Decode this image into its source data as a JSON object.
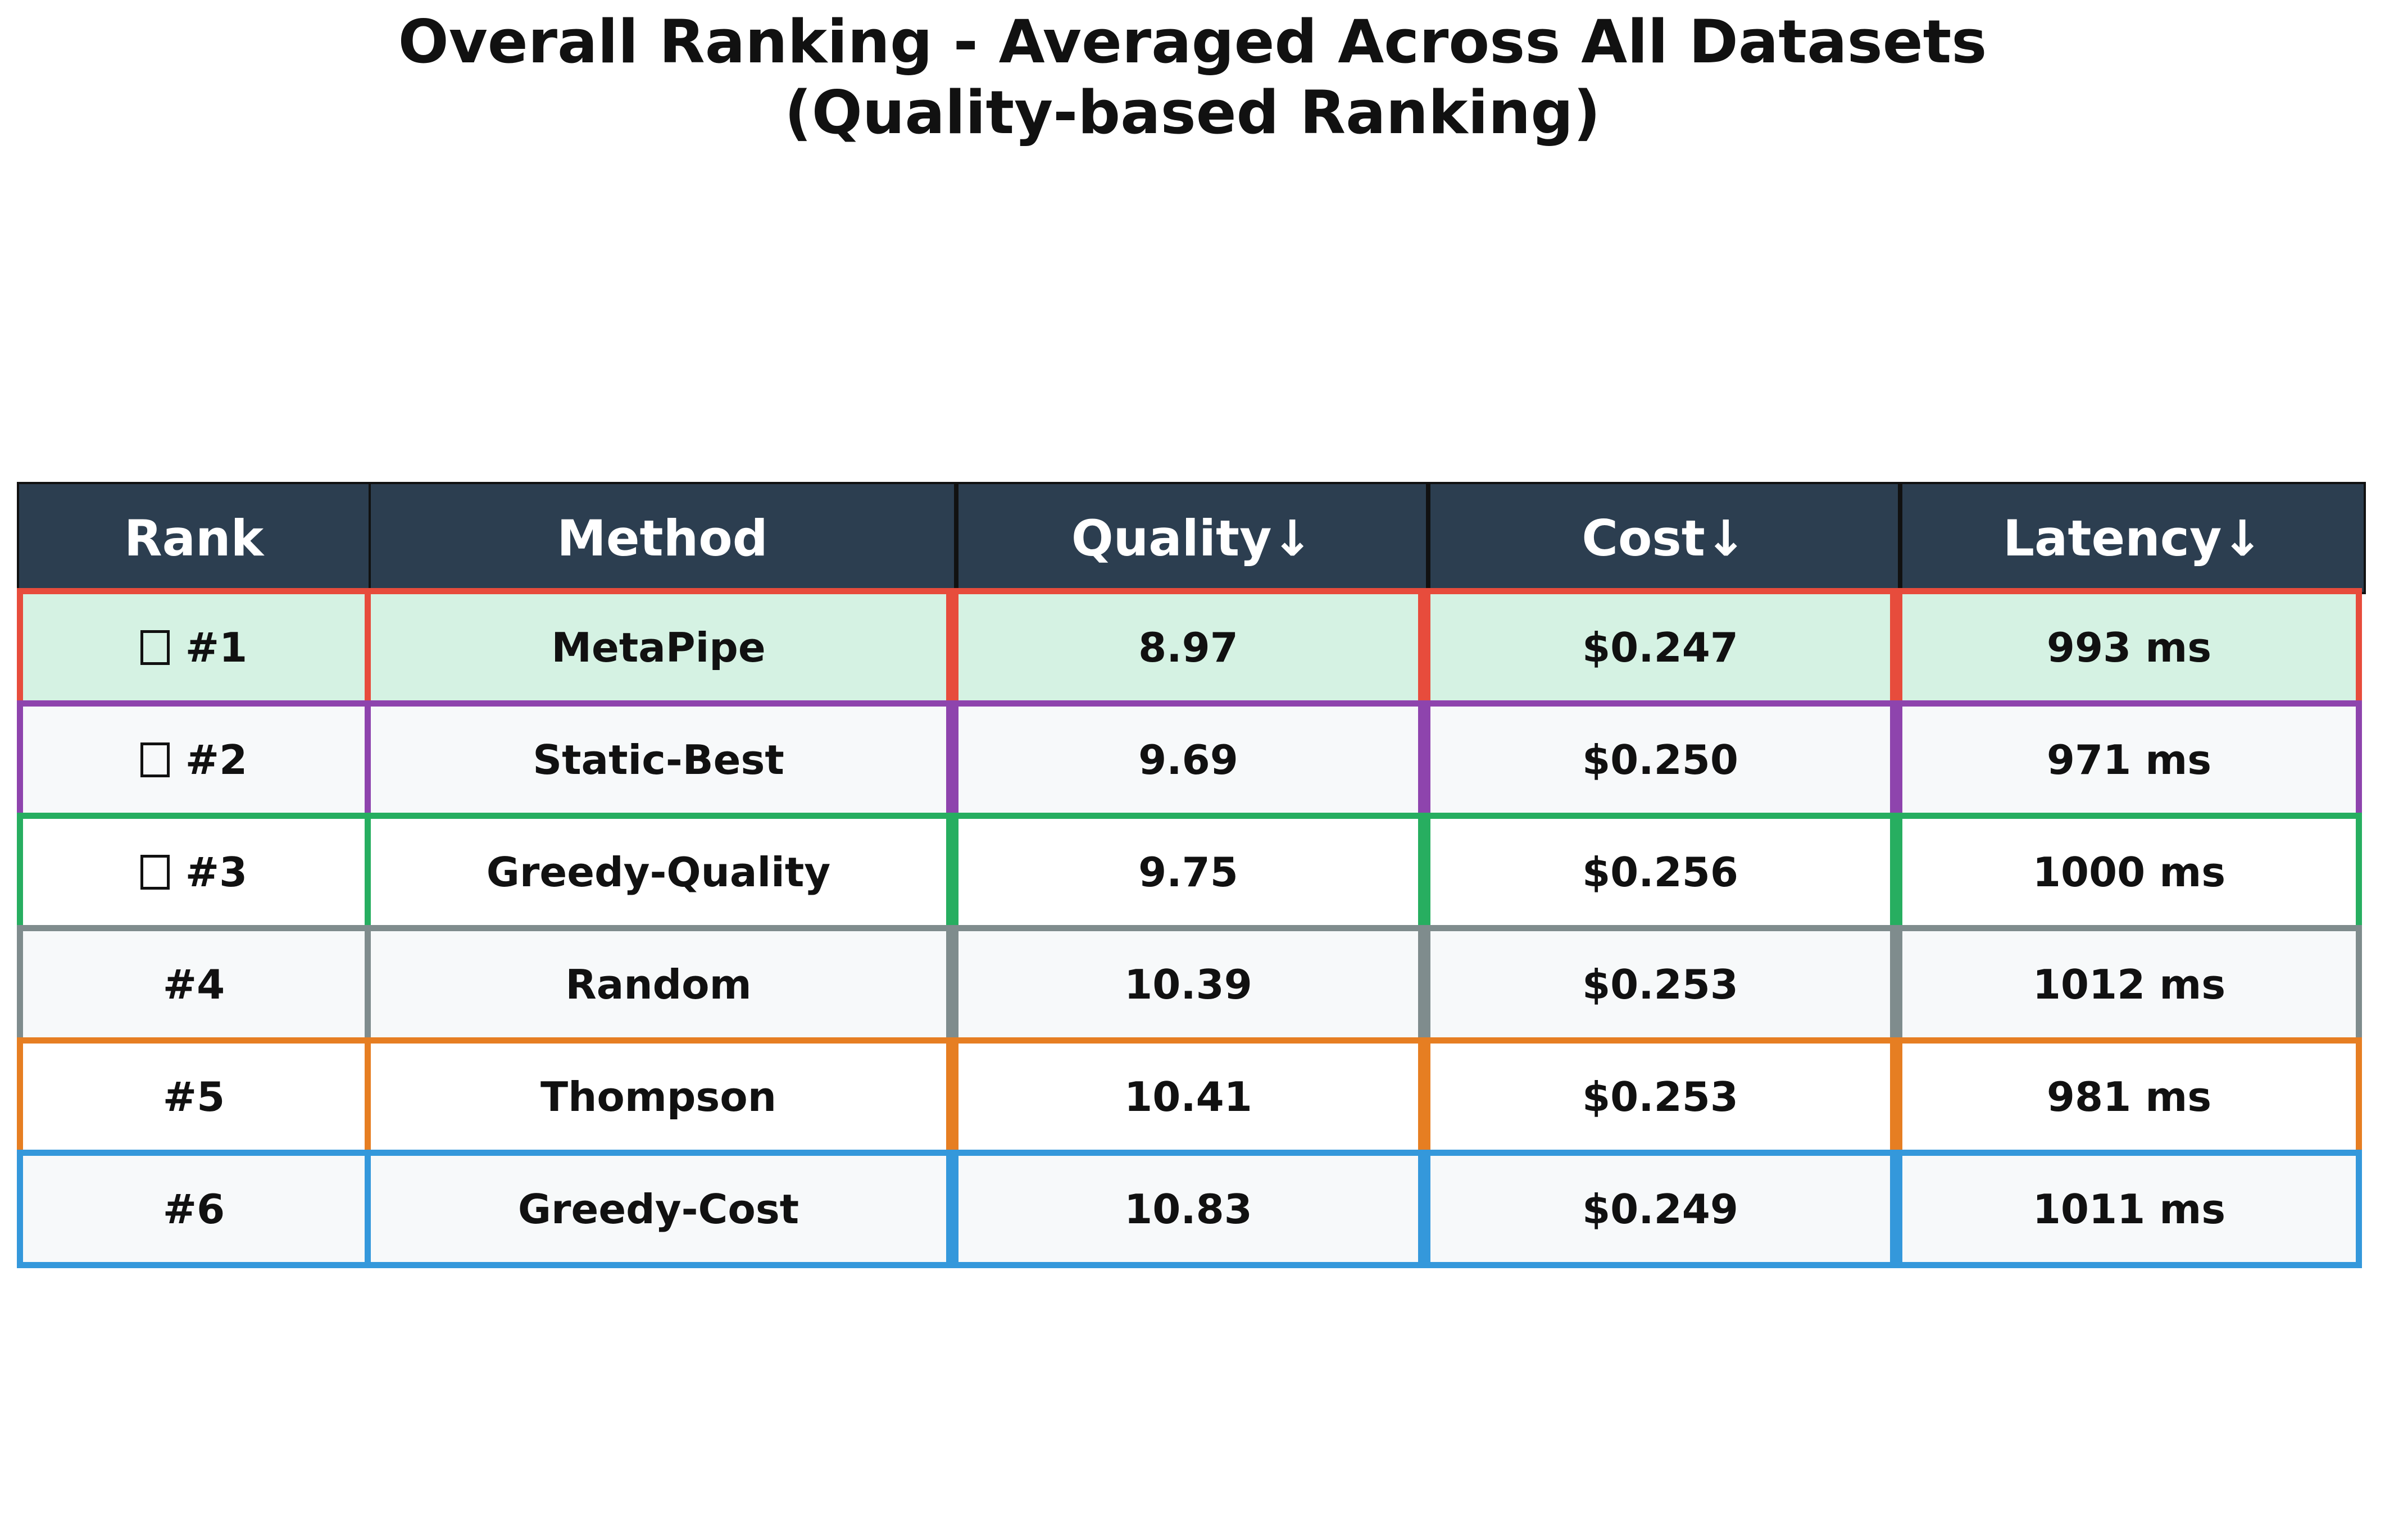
{
  "chart_data": {
    "type": "table",
    "title": "Overall Ranking - Averaged Across All Datasets",
    "subtitle": "(Quality-based Ranking)",
    "columns": [
      "Rank",
      "Method",
      "Quality↓",
      "Cost↓",
      "Latency↓"
    ],
    "rows": [
      {
        "rank": "#1",
        "method": "MetaPipe",
        "quality": "8.97",
        "cost": "$0.247",
        "latency": "993 ms",
        "medal": true,
        "bg": "#d5f2e3",
        "border": "#e74c3c"
      },
      {
        "rank": "#2",
        "method": "Static-Best",
        "quality": "9.69",
        "cost": "$0.250",
        "latency": "971 ms",
        "medal": true,
        "bg": "#f7f9fa",
        "border": "#8e44ad"
      },
      {
        "rank": "#3",
        "method": "Greedy-Quality",
        "quality": "9.75",
        "cost": "$0.256",
        "latency": "1000 ms",
        "medal": true,
        "bg": "#ffffff",
        "border": "#27ae60"
      },
      {
        "rank": "#4",
        "method": "Random",
        "quality": "10.39",
        "cost": "$0.253",
        "latency": "1012 ms",
        "medal": false,
        "bg": "#f7f9fa",
        "border": "#7f8c8d"
      },
      {
        "rank": "#5",
        "method": "Thompson",
        "quality": "10.41",
        "cost": "$0.253",
        "latency": "981 ms",
        "medal": false,
        "bg": "#ffffff",
        "border": "#e67e22"
      },
      {
        "rank": "#6",
        "method": "Greedy-Cost",
        "quality": "10.83",
        "cost": "$0.249",
        "latency": "1011 ms",
        "medal": false,
        "bg": "#f7f9fa",
        "border": "#3498db"
      }
    ],
    "header_bg": "#2c3e50"
  }
}
